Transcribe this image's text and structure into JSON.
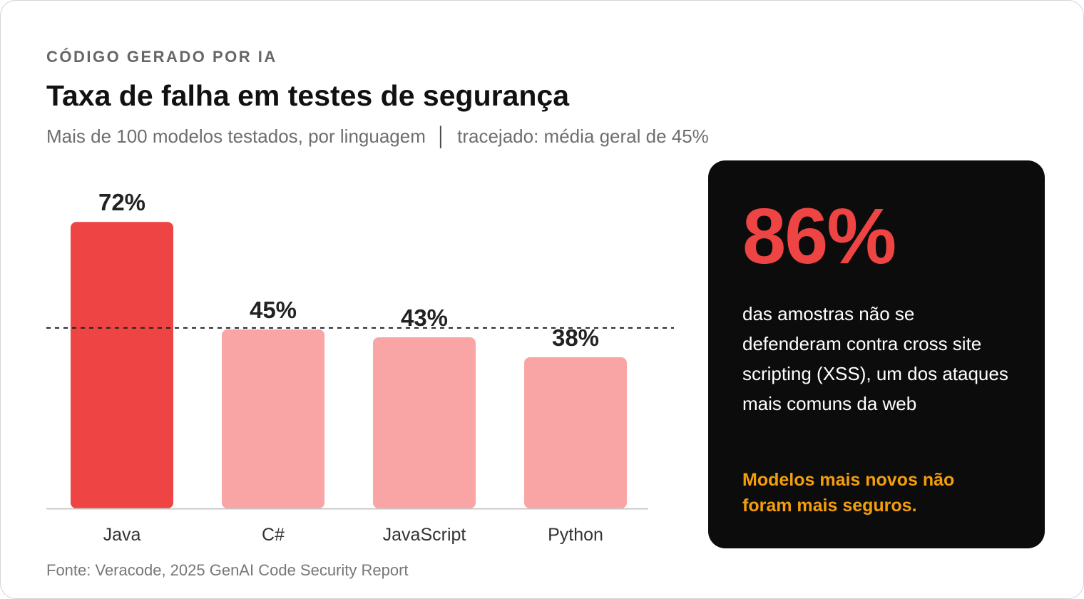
{
  "header": {
    "eyebrow": "CÓDIGO GERADO POR IA",
    "title": "Taxa de falha em testes de segurança",
    "subtitle_left": "Mais de 100 modelos testados, por linguagem",
    "subtitle_separator": "│",
    "subtitle_right": "tracejado: média geral de 45%"
  },
  "chart_data": {
    "type": "bar",
    "categories": [
      "Java",
      "C#",
      "JavaScript",
      "Python"
    ],
    "values": [
      72,
      45,
      43,
      38
    ],
    "value_labels": [
      "72%",
      "45%",
      "43%",
      "38%"
    ],
    "average": 45,
    "unit": "%",
    "ylim": [
      0,
      100
    ],
    "grid": false,
    "colors": {
      "highlight": "#ef4444",
      "normal": "#faa5a5",
      "axis": "#c8c8c8",
      "average_line": "#222222"
    }
  },
  "panel": {
    "stat": "86%",
    "text": "das amostras não se defenderam contra cross site scripting (XSS), um dos ataques mais comuns da web",
    "note": "Modelos mais novos não foram mais seguros."
  },
  "footer": {
    "source": "Fonte: Veracode, 2025 GenAI Code Security Report"
  },
  "colors": {
    "background": "#ffffff",
    "panel_bg": "#0c0c0c",
    "accent_red": "#ef4444",
    "accent_orange": "#f59e0b"
  }
}
